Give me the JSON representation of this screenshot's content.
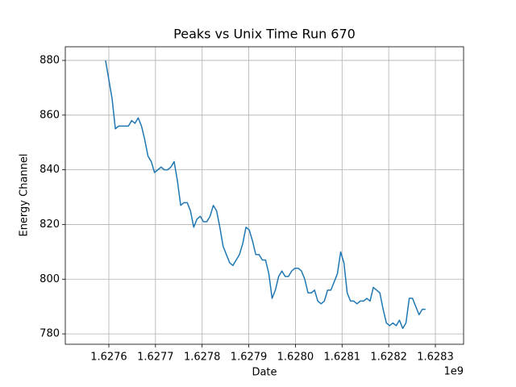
{
  "chart_data": {
    "type": "line",
    "title": "Peaks vs Unix Time Run 670",
    "x_label": "Date",
    "y_label": "Energy Channel",
    "x_offset_label": "1e9",
    "x": [
      1627593000,
      1627600000,
      1627607000,
      1627614000,
      1627621000,
      1627628000,
      1627635000,
      1627642000,
      1627649000,
      1627656000,
      1627663000,
      1627670000,
      1627677000,
      1627684000,
      1627691000,
      1627698000,
      1627705000,
      1627712000,
      1627719000,
      1627726000,
      1627733000,
      1627740000,
      1627747000,
      1627754000,
      1627761000,
      1627768000,
      1627775000,
      1627782000,
      1627789000,
      1627796000,
      1627803000,
      1627810000,
      1627817000,
      1627824000,
      1627831000,
      1627838000,
      1627845000,
      1627852000,
      1627859000,
      1627866000,
      1627873000,
      1627880000,
      1627887000,
      1627894000,
      1627901000,
      1627908000,
      1627915000,
      1627922000,
      1627929000,
      1627936000,
      1627943000,
      1627950000,
      1627957000,
      1627964000,
      1627971000,
      1627978000,
      1627985000,
      1627992000,
      1627999000,
      1628006000,
      1628013000,
      1628020000,
      1628027000,
      1628034000,
      1628041000,
      1628048000,
      1628055000,
      1628062000,
      1628069000,
      1628076000,
      1628083000,
      1628090000,
      1628097000,
      1628104000,
      1628111000,
      1628118000,
      1628125000,
      1628132000,
      1628139000,
      1628146000,
      1628153000,
      1628160000,
      1628167000,
      1628174000,
      1628181000,
      1628188000,
      1628195000,
      1628202000,
      1628209000,
      1628216000,
      1628223000,
      1628230000,
      1628237000,
      1628244000,
      1628251000,
      1628258000,
      1628265000,
      1628272000,
      1628279000
    ],
    "series": [
      {
        "color": "#1f77b4",
        "values": [
          880,
          873,
          866,
          855,
          856,
          856,
          856,
          856,
          858,
          857,
          859,
          856,
          851,
          845,
          843,
          839,
          840,
          841,
          840,
          840,
          841,
          843,
          836,
          827,
          828,
          828,
          825,
          819,
          822,
          823,
          821,
          821,
          823,
          827,
          825,
          819,
          812,
          809,
          806,
          805,
          807,
          809,
          813,
          819,
          818,
          814,
          809,
          809,
          807,
          807,
          802,
          793,
          796,
          801,
          803,
          801,
          801,
          803,
          804,
          804,
          803,
          800,
          795,
          795,
          796,
          792,
          791,
          792,
          796,
          796,
          799,
          802,
          810,
          806,
          795,
          792,
          792,
          791,
          792,
          792,
          793,
          792,
          797,
          796,
          795,
          789,
          784,
          783,
          784,
          783,
          785,
          782,
          784,
          793,
          793,
          790,
          787,
          789,
          789
        ]
      }
    ],
    "xlim": [
      1627506700,
      1628360500
    ],
    "ylim": [
      776.2,
      885.0
    ],
    "xticks": [
      {
        "value": 1627600000,
        "label": "1.6276"
      },
      {
        "value": 1627700000,
        "label": "1.6277"
      },
      {
        "value": 1627800000,
        "label": "1.6278"
      },
      {
        "value": 1627900000,
        "label": "1.6279"
      },
      {
        "value": 1628000000,
        "label": "1.6280"
      },
      {
        "value": 1628100000,
        "label": "1.6281"
      },
      {
        "value": 1628200000,
        "label": "1.6282"
      },
      {
        "value": 1628300000,
        "label": "1.6283"
      }
    ],
    "yticks": [
      780,
      800,
      820,
      840,
      860,
      880
    ],
    "grid": true
  }
}
